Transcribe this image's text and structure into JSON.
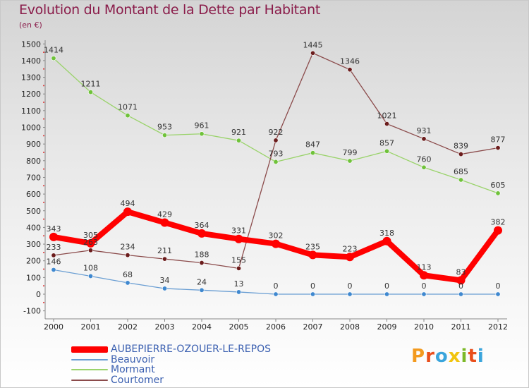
{
  "header": {
    "title": "Evolution du Montant de la Dette par Habitant",
    "subtitle": "(en €)"
  },
  "logo": {
    "text": "Proxiti",
    "letter_colors": [
      "#f39a1e",
      "#e94e1b",
      "#3aa5dc",
      "#f1c40f",
      "#7cb928",
      "#e94e1b",
      "#3aa5dc"
    ]
  },
  "chart_data": {
    "type": "line",
    "title": "Evolution du Montant de la Dette par Habitant",
    "subtitle": "(en €)",
    "xlabel": "",
    "ylabel": "",
    "x": [
      "2000",
      "2001",
      "2002",
      "2003",
      "2004",
      "2005",
      "2006",
      "2007",
      "2008",
      "2009",
      "2010",
      "2011",
      "2012"
    ],
    "ylim": [
      -100,
      1500
    ],
    "yticks": [
      -100,
      0,
      100,
      200,
      300,
      400,
      500,
      600,
      700,
      800,
      900,
      1000,
      1100,
      1200,
      1300,
      1400,
      1500
    ],
    "grid": false,
    "legend_position": "bottom-left",
    "series": [
      {
        "name": "AUBEPIERRE-OZOUER-LE-REPOS",
        "color": "#ff0000",
        "marker_color": "#ff0000",
        "emphasis": true,
        "values": [
          343,
          305,
          494,
          429,
          364,
          331,
          302,
          235,
          223,
          318,
          113,
          83,
          382
        ]
      },
      {
        "name": "Beauvoir",
        "color": "#6a9ed3",
        "marker_color": "#3f88cf",
        "values": [
          146,
          108,
          68,
          34,
          24,
          13,
          0,
          0,
          0,
          0,
          0,
          0,
          0
        ]
      },
      {
        "name": "Mormant",
        "color": "#9ad36b",
        "marker_color": "#6fc23a",
        "values": [
          1414,
          1211,
          1071,
          953,
          961,
          921,
          793,
          847,
          799,
          857,
          760,
          685,
          605
        ]
      },
      {
        "name": "Courtomer",
        "color": "#8b4b4b",
        "marker_color": "#6b1c1c",
        "values": [
          233,
          263,
          234,
          211,
          188,
          155,
          922,
          1445,
          1346,
          1021,
          931,
          839,
          877
        ]
      }
    ]
  }
}
